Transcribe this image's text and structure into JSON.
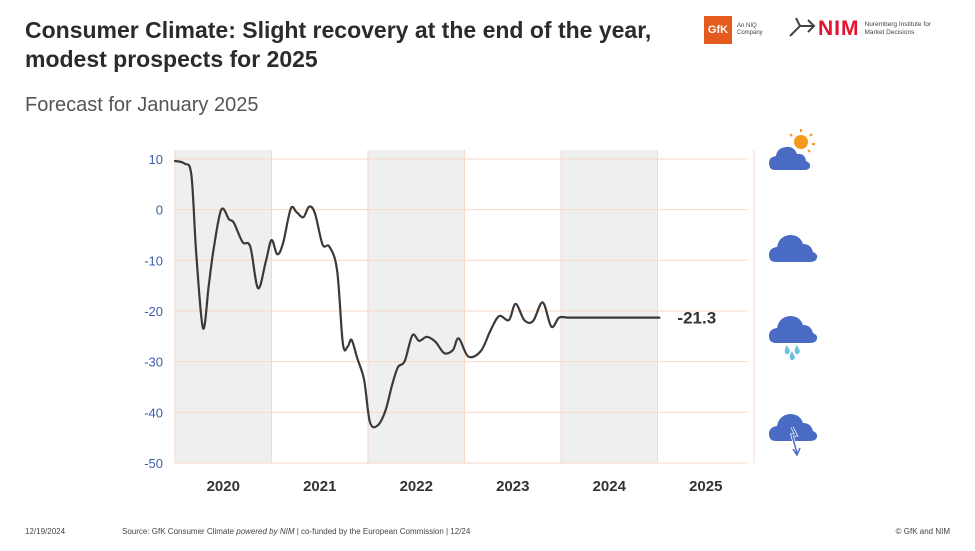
{
  "header": {
    "title_line1": "Consumer Climate: Slight recovery at the end of the year,",
    "title_line2": "modest prospects for 2025",
    "subtitle": "Forecast for January 2025"
  },
  "logos": {
    "gfk_mark": "GfK",
    "gfk_caption": "An NIQ Company",
    "nim_mark": "NIM",
    "nim_caption": "Nuremberg Institute for Market Decisions"
  },
  "chart_data": {
    "type": "line",
    "title": "Consumer Climate",
    "ylim": [
      -50,
      10
    ],
    "yticks": [
      10,
      0,
      -10,
      -20,
      -30,
      -40,
      -50
    ],
    "xlim": [
      2019.5,
      2025.5
    ],
    "categories": [
      "2020",
      "2021",
      "2022",
      "2023",
      "2024",
      "2025"
    ],
    "shaded_years": [
      "2020",
      "2022",
      "2024"
    ],
    "last_value_label": "-21.3",
    "series": [
      {
        "name": "Consumer Climate",
        "x": [
          2019.5,
          2019.6,
          2019.67,
          2019.72,
          2019.79,
          2019.85,
          2019.9,
          2019.98,
          2020.06,
          2020.11,
          2020.2,
          2020.28,
          2020.36,
          2020.44,
          2020.5,
          2020.56,
          2020.62,
          2020.7,
          2020.76,
          2020.83,
          2020.89,
          2020.95,
          2021.03,
          2021.1,
          2021.18,
          2021.24,
          2021.29,
          2021.33,
          2021.39,
          2021.46,
          2021.52,
          2021.6,
          2021.68,
          2021.75,
          2021.81,
          2021.88,
          2021.96,
          2022.03,
          2022.11,
          2022.2,
          2022.29,
          2022.38,
          2022.44,
          2022.54,
          2022.67,
          2022.77,
          2022.86,
          2022.96,
          2023.03,
          2023.12,
          2023.21,
          2023.31,
          2023.4,
          2023.48,
          2023.57,
          2023.66,
          2023.73,
          2023.82,
          2023.9,
          2023.97,
          2024.05,
          2024.13,
          2024.2,
          2024.27,
          2024.35,
          2024.41,
          2024.48,
          2024.52
        ],
        "values": [
          9.6,
          9.1,
          6.8,
          -8.6,
          -23.4,
          -14.9,
          -7.8,
          0.0,
          -1.9,
          -2.6,
          -6.4,
          -7.3,
          -15.5,
          -10.3,
          -6.0,
          -8.8,
          -6.6,
          0.2,
          -0.5,
          -1.5,
          0.6,
          -0.7,
          -6.9,
          -7.3,
          -12.0,
          -26.5,
          -27.0,
          -25.7,
          -29.4,
          -33.6,
          -41.9,
          -42.6,
          -39.7,
          -34.6,
          -31.1,
          -29.9,
          -24.8,
          -25.9,
          -25.1,
          -26.1,
          -28.3,
          -27.7,
          -25.4,
          -29.0,
          -27.9,
          -23.8,
          -21.0,
          -21.8,
          -18.6,
          -21.8,
          -22.0,
          -18.3,
          -23.1,
          -21.3,
          -21.3,
          -21.3,
          -21.3,
          -21.3,
          -21.3,
          -21.3,
          -21.3,
          -21.3,
          -21.3,
          -21.3,
          -21.3,
          -21.3,
          -21.3,
          -21.3
        ]
      }
    ]
  },
  "weather_icons": [
    "sun-cloud-icon",
    "cloud-icon",
    "rain-cloud-icon",
    "thunder-cloud-icon"
  ],
  "footer": {
    "date": "12/19/2024",
    "source_prefix": "Source: GfK Consumer Climate ",
    "source_powered": "powered by NIM",
    "source_suffix": " | co-funded by the European Commission | 12/24",
    "copyright": "© GfK and NIM"
  },
  "colors": {
    "line": "#3a3a3a",
    "shade": "#efefef",
    "grid": "#f6d9c8",
    "axis_text": "#3b5ea8",
    "cloud": "#4a6bc4",
    "sun": "#f39a1c",
    "rain": "#6bc3e0"
  }
}
